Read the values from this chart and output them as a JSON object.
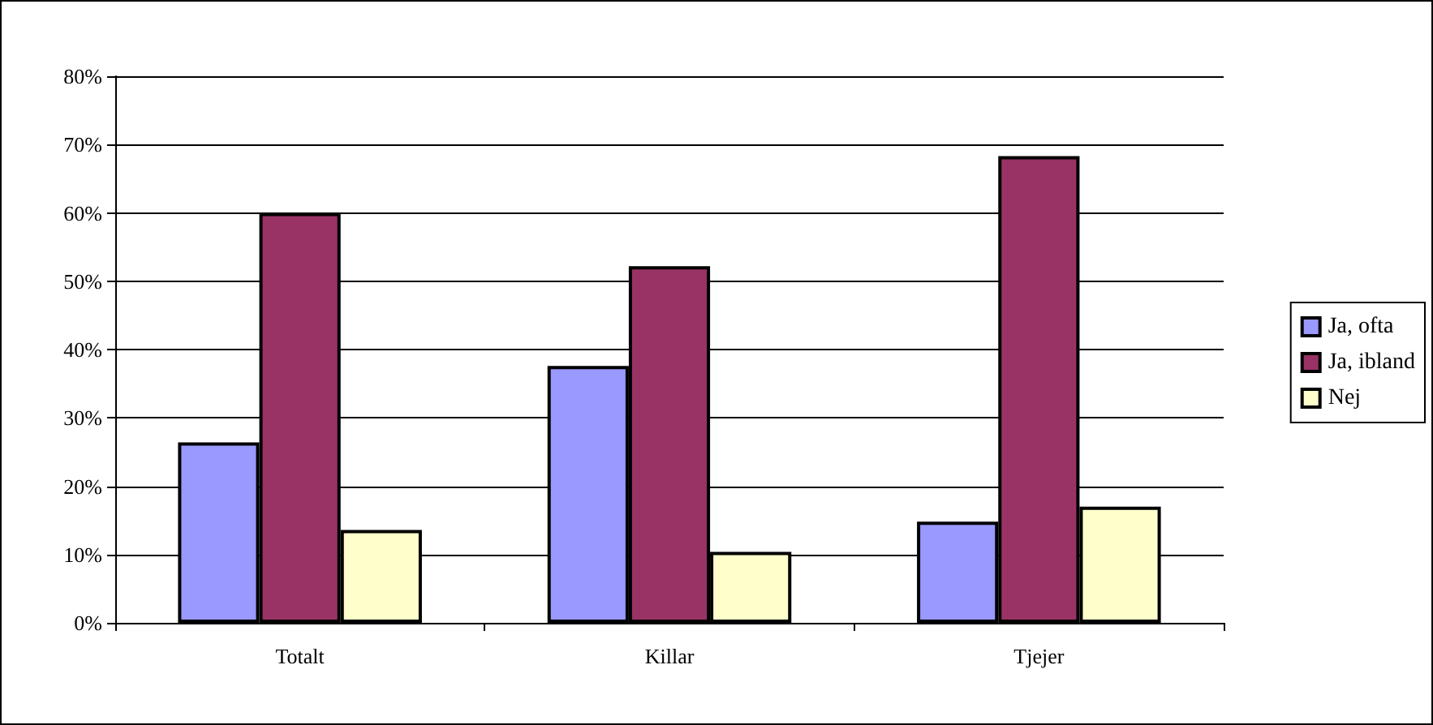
{
  "chart_data": {
    "type": "bar",
    "categories": [
      "Totalt",
      "Killar",
      "Tjejer"
    ],
    "series": [
      {
        "name": "Ja, ofta",
        "color": "#9999ff",
        "values": [
          26.4,
          37.6,
          14.8
        ]
      },
      {
        "name": "Ja, ibland",
        "color": "#993366",
        "values": [
          60,
          52.2,
          68.3
        ]
      },
      {
        "name": "Nej",
        "color": "#ffffcc",
        "values": [
          13.6,
          10.4,
          17
        ]
      }
    ],
    "ylim": [
      0,
      80
    ],
    "yticks": [
      {
        "value": 0,
        "label": "0%"
      },
      {
        "value": 10,
        "label": "10%"
      },
      {
        "value": 20,
        "label": "20%"
      },
      {
        "value": 30,
        "label": "30%"
      },
      {
        "value": 40,
        "label": "40%"
      },
      {
        "value": 50,
        "label": "50%"
      },
      {
        "value": 60,
        "label": "60%"
      },
      {
        "value": 70,
        "label": "70%"
      },
      {
        "value": 80,
        "label": "80%"
      }
    ],
    "grid": "y",
    "legend": "right"
  }
}
